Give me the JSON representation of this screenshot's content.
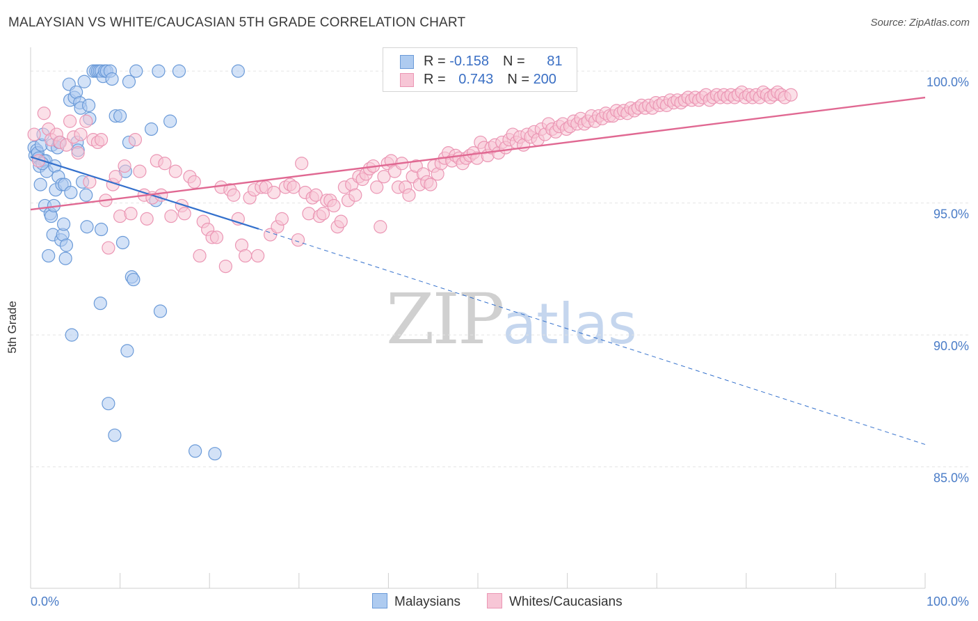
{
  "header": {
    "title": "MALAYSIAN VS WHITE/CAUCASIAN 5TH GRADE CORRELATION CHART",
    "source": "Source: ZipAtlas.com"
  },
  "watermark": {
    "zip": "ZIP",
    "atlas": "atlas"
  },
  "legend": {
    "rows": [
      {
        "r_label": "R = ",
        "r_value": "-0.158",
        "n_label": "N = ",
        "n_value": "81"
      },
      {
        "r_label": "R = ",
        "r_value": "0.743",
        "n_label": "N = ",
        "n_value": "200"
      }
    ]
  },
  "bottom_legend": {
    "malaysians": "Malaysians",
    "whites": "Whites/Caucasians"
  },
  "colors": {
    "blue_fill": "#aecbf0",
    "blue_stroke": "#6a9ad8",
    "blue_line": "#3370cc",
    "pink_fill": "#f7c6d6",
    "pink_stroke": "#eb96b4",
    "pink_line": "#e06892",
    "tick": "#4a7cc7",
    "grid": "#e3e3e3"
  },
  "chart_data": {
    "type": "scatter",
    "title": "MALAYSIAN VS WHITE/CAUCASIAN 5TH GRADE CORRELATION CHART",
    "xlabel": "",
    "ylabel": "5th Grade",
    "xlim": [
      0,
      100
    ],
    "ylim": [
      80.4,
      100.9
    ],
    "x_tick_labels": [
      "0.0%",
      "100.0%"
    ],
    "y_ticks": [
      {
        "value": 100,
        "label": "100.0%"
      },
      {
        "value": 95,
        "label": "95.0%"
      },
      {
        "value": 90,
        "label": "90.0%"
      },
      {
        "value": 85,
        "label": "85.0%"
      }
    ],
    "grid": "horizontal dashed",
    "legend_placement": "top-center",
    "series": [
      {
        "name": "Malaysians",
        "r": -0.158,
        "n": 81,
        "trend": {
          "x0": 0,
          "y0": 96.75,
          "x1": 25.5,
          "y1": 94.02,
          "dashed_to_x": 100,
          "dashed_to_y": 85.85
        },
        "points": [
          [
            0.4,
            97.1
          ],
          [
            0.5,
            96.8
          ],
          [
            0.7,
            97.0
          ],
          [
            0.8,
            96.9
          ],
          [
            0.9,
            96.7
          ],
          [
            1.0,
            96.4
          ],
          [
            1.1,
            95.7
          ],
          [
            1.2,
            97.2
          ],
          [
            1.4,
            97.6
          ],
          [
            1.5,
            96.6
          ],
          [
            1.6,
            94.9
          ],
          [
            1.7,
            96.6
          ],
          [
            1.8,
            96.2
          ],
          [
            2.0,
            93.0
          ],
          [
            2.2,
            94.6
          ],
          [
            2.3,
            94.5
          ],
          [
            2.4,
            97.2
          ],
          [
            2.5,
            93.8
          ],
          [
            2.6,
            94.9
          ],
          [
            2.7,
            96.4
          ],
          [
            2.8,
            95.5
          ],
          [
            3.0,
            97.1
          ],
          [
            3.1,
            96.0
          ],
          [
            3.2,
            97.3
          ],
          [
            3.4,
            93.6
          ],
          [
            3.5,
            95.7
          ],
          [
            3.6,
            93.8
          ],
          [
            3.7,
            94.2
          ],
          [
            3.8,
            95.7
          ],
          [
            3.9,
            92.9
          ],
          [
            4.0,
            93.4
          ],
          [
            4.3,
            99.5
          ],
          [
            4.4,
            98.9
          ],
          [
            4.5,
            95.4
          ],
          [
            4.6,
            90.0
          ],
          [
            4.9,
            99.0
          ],
          [
            5.1,
            99.2
          ],
          [
            5.2,
            97.3
          ],
          [
            5.3,
            97.0
          ],
          [
            5.5,
            98.8
          ],
          [
            5.6,
            98.6
          ],
          [
            5.8,
            95.8
          ],
          [
            6.0,
            99.6
          ],
          [
            6.2,
            95.3
          ],
          [
            6.5,
            98.7
          ],
          [
            6.3,
            94.1
          ],
          [
            6.6,
            98.2
          ],
          [
            7.0,
            100.0
          ],
          [
            7.3,
            100.0
          ],
          [
            7.5,
            100.0
          ],
          [
            7.7,
            100.0
          ],
          [
            7.9,
            100.0
          ],
          [
            8.1,
            99.8
          ],
          [
            8.3,
            100.0
          ],
          [
            8.5,
            100.0
          ],
          [
            8.7,
            87.4
          ],
          [
            8.9,
            100.0
          ],
          [
            9.1,
            99.7
          ],
          [
            9.4,
            86.2
          ],
          [
            9.5,
            98.3
          ],
          [
            10.0,
            98.3
          ],
          [
            10.3,
            93.5
          ],
          [
            10.6,
            96.2
          ],
          [
            10.8,
            89.4
          ],
          [
            11.0,
            99.6
          ],
          [
            11.3,
            92.2
          ],
          [
            11.5,
            92.1
          ],
          [
            11.8,
            100.0
          ],
          [
            7.9,
            94.0
          ],
          [
            7.8,
            91.2
          ],
          [
            13.5,
            97.8
          ],
          [
            14.0,
            95.1
          ],
          [
            14.3,
            100.0
          ],
          [
            14.5,
            90.9
          ],
          [
            15.6,
            98.1
          ],
          [
            16.6,
            100.0
          ],
          [
            18.4,
            85.6
          ],
          [
            20.6,
            85.5
          ],
          [
            23.2,
            100.0
          ],
          [
            11.0,
            97.3
          ],
          [
            1.3,
            96.5
          ]
        ]
      },
      {
        "name": "Whites/Caucasians",
        "r": 0.743,
        "n": 200,
        "trend": {
          "x0": 0,
          "y0": 94.75,
          "x1": 100,
          "y1": 99.0
        },
        "points": [
          [
            0.4,
            97.6
          ],
          [
            0.9,
            96.6
          ],
          [
            1.5,
            98.4
          ],
          [
            2.0,
            97.8
          ],
          [
            2.3,
            97.4
          ],
          [
            2.9,
            97.6
          ],
          [
            3.3,
            97.3
          ],
          [
            4.0,
            97.2
          ],
          [
            4.4,
            98.1
          ],
          [
            4.8,
            97.5
          ],
          [
            5.3,
            96.9
          ],
          [
            5.6,
            97.6
          ],
          [
            6.2,
            98.1
          ],
          [
            6.6,
            95.8
          ],
          [
            7.0,
            97.4
          ],
          [
            7.5,
            97.3
          ],
          [
            7.9,
            97.4
          ],
          [
            8.4,
            95.1
          ],
          [
            8.7,
            93.3
          ],
          [
            9.2,
            95.7
          ],
          [
            9.5,
            96.0
          ],
          [
            10.0,
            94.5
          ],
          [
            10.5,
            96.4
          ],
          [
            11.2,
            94.6
          ],
          [
            11.7,
            97.4
          ],
          [
            12.2,
            96.2
          ],
          [
            12.7,
            95.3
          ],
          [
            13.0,
            94.4
          ],
          [
            13.6,
            95.2
          ],
          [
            14.1,
            96.6
          ],
          [
            14.6,
            95.3
          ],
          [
            15.0,
            96.5
          ],
          [
            15.7,
            94.5
          ],
          [
            16.2,
            96.2
          ],
          [
            16.9,
            94.9
          ],
          [
            17.2,
            94.6
          ],
          [
            17.8,
            96.0
          ],
          [
            18.3,
            95.8
          ],
          [
            18.9,
            93.0
          ],
          [
            19.3,
            94.3
          ],
          [
            19.8,
            94.0
          ],
          [
            20.3,
            93.7
          ],
          [
            20.8,
            93.7
          ],
          [
            21.3,
            95.6
          ],
          [
            21.8,
            92.6
          ],
          [
            22.3,
            95.5
          ],
          [
            22.7,
            95.3
          ],
          [
            23.2,
            94.4
          ],
          [
            23.6,
            93.4
          ],
          [
            24.0,
            93.0
          ],
          [
            24.5,
            95.2
          ],
          [
            25.0,
            95.5
          ],
          [
            25.4,
            93.0
          ],
          [
            25.8,
            95.6
          ],
          [
            26.3,
            95.6
          ],
          [
            26.8,
            93.8
          ],
          [
            27.2,
            95.4
          ],
          [
            27.6,
            94.1
          ],
          [
            28.1,
            94.4
          ],
          [
            28.5,
            95.6
          ],
          [
            29.0,
            95.7
          ],
          [
            29.4,
            95.6
          ],
          [
            29.9,
            93.6
          ],
          [
            30.3,
            96.5
          ],
          [
            30.7,
            95.4
          ],
          [
            31.1,
            94.6
          ],
          [
            31.5,
            95.2
          ],
          [
            31.9,
            95.3
          ],
          [
            32.3,
            94.5
          ],
          [
            32.7,
            94.6
          ],
          [
            33.1,
            95.1
          ],
          [
            33.5,
            95.1
          ],
          [
            33.9,
            94.9
          ],
          [
            34.3,
            94.1
          ],
          [
            34.7,
            94.3
          ],
          [
            35.1,
            95.6
          ],
          [
            35.5,
            95.1
          ],
          [
            35.9,
            95.7
          ],
          [
            36.3,
            95.3
          ],
          [
            36.7,
            96.0
          ],
          [
            37.1,
            95.9
          ],
          [
            37.5,
            96.1
          ],
          [
            37.9,
            96.3
          ],
          [
            38.3,
            96.4
          ],
          [
            38.7,
            95.6
          ],
          [
            39.1,
            94.1
          ],
          [
            39.5,
            96.0
          ],
          [
            39.9,
            96.5
          ],
          [
            40.3,
            96.6
          ],
          [
            40.7,
            96.2
          ],
          [
            41.1,
            95.6
          ],
          [
            41.5,
            96.5
          ],
          [
            41.9,
            95.6
          ],
          [
            42.3,
            95.3
          ],
          [
            42.7,
            96.0
          ],
          [
            43.1,
            96.4
          ],
          [
            43.5,
            95.7
          ],
          [
            43.9,
            96.1
          ],
          [
            44.3,
            95.8
          ],
          [
            44.7,
            95.7
          ],
          [
            45.1,
            96.4
          ],
          [
            45.5,
            96.1
          ],
          [
            45.9,
            96.5
          ],
          [
            46.3,
            96.7
          ],
          [
            46.7,
            96.9
          ],
          [
            47.1,
            96.6
          ],
          [
            47.5,
            96.8
          ],
          [
            47.9,
            96.7
          ],
          [
            48.3,
            96.5
          ],
          [
            48.7,
            96.7
          ],
          [
            49.1,
            96.8
          ],
          [
            49.5,
            96.9
          ],
          [
            49.9,
            96.7
          ],
          [
            50.3,
            97.3
          ],
          [
            50.7,
            97.1
          ],
          [
            51.1,
            96.8
          ],
          [
            51.5,
            97.1
          ],
          [
            51.9,
            97.2
          ],
          [
            52.3,
            96.9
          ],
          [
            52.7,
            97.3
          ],
          [
            53.1,
            97.1
          ],
          [
            53.5,
            97.4
          ],
          [
            53.9,
            97.6
          ],
          [
            54.3,
            97.3
          ],
          [
            54.7,
            97.5
          ],
          [
            55.1,
            97.2
          ],
          [
            55.5,
            97.6
          ],
          [
            55.9,
            97.5
          ],
          [
            56.3,
            97.7
          ],
          [
            56.7,
            97.4
          ],
          [
            57.1,
            97.8
          ],
          [
            57.5,
            97.6
          ],
          [
            57.9,
            98.0
          ],
          [
            58.3,
            97.8
          ],
          [
            58.7,
            97.7
          ],
          [
            59.1,
            97.9
          ],
          [
            59.5,
            98.0
          ],
          [
            59.9,
            97.8
          ],
          [
            60.3,
            97.9
          ],
          [
            60.7,
            98.1
          ],
          [
            61.1,
            98.0
          ],
          [
            61.5,
            98.2
          ],
          [
            61.9,
            98.0
          ],
          [
            62.3,
            98.1
          ],
          [
            62.7,
            98.3
          ],
          [
            63.1,
            98.1
          ],
          [
            63.5,
            98.3
          ],
          [
            63.9,
            98.2
          ],
          [
            64.3,
            98.4
          ],
          [
            64.7,
            98.3
          ],
          [
            65.1,
            98.3
          ],
          [
            65.5,
            98.5
          ],
          [
            65.9,
            98.4
          ],
          [
            66.3,
            98.5
          ],
          [
            66.7,
            98.4
          ],
          [
            67.1,
            98.6
          ],
          [
            67.5,
            98.5
          ],
          [
            67.9,
            98.6
          ],
          [
            68.3,
            98.7
          ],
          [
            68.7,
            98.6
          ],
          [
            69.1,
            98.7
          ],
          [
            69.5,
            98.6
          ],
          [
            69.9,
            98.8
          ],
          [
            70.3,
            98.7
          ],
          [
            70.7,
            98.8
          ],
          [
            71.1,
            98.7
          ],
          [
            71.5,
            98.9
          ],
          [
            71.9,
            98.8
          ],
          [
            72.3,
            98.9
          ],
          [
            72.7,
            98.8
          ],
          [
            73.1,
            98.9
          ],
          [
            73.5,
            99.0
          ],
          [
            73.9,
            98.9
          ],
          [
            74.3,
            99.0
          ],
          [
            74.7,
            98.9
          ],
          [
            75.1,
            99.0
          ],
          [
            75.5,
            99.1
          ],
          [
            75.9,
            98.9
          ],
          [
            76.3,
            99.0
          ],
          [
            76.7,
            99.1
          ],
          [
            77.1,
            99.0
          ],
          [
            77.5,
            99.1
          ],
          [
            77.9,
            99.0
          ],
          [
            78.3,
            99.1
          ],
          [
            78.7,
            99.0
          ],
          [
            79.1,
            99.1
          ],
          [
            79.5,
            99.2
          ],
          [
            79.9,
            99.0
          ],
          [
            80.3,
            99.1
          ],
          [
            80.7,
            99.0
          ],
          [
            81.1,
            99.1
          ],
          [
            81.5,
            99.0
          ],
          [
            81.9,
            99.2
          ],
          [
            82.3,
            99.1
          ],
          [
            82.7,
            99.0
          ],
          [
            83.1,
            99.1
          ],
          [
            83.5,
            99.2
          ],
          [
            83.9,
            99.1
          ],
          [
            84.3,
            99.0
          ],
          [
            85.0,
            99.1
          ]
        ]
      }
    ]
  }
}
